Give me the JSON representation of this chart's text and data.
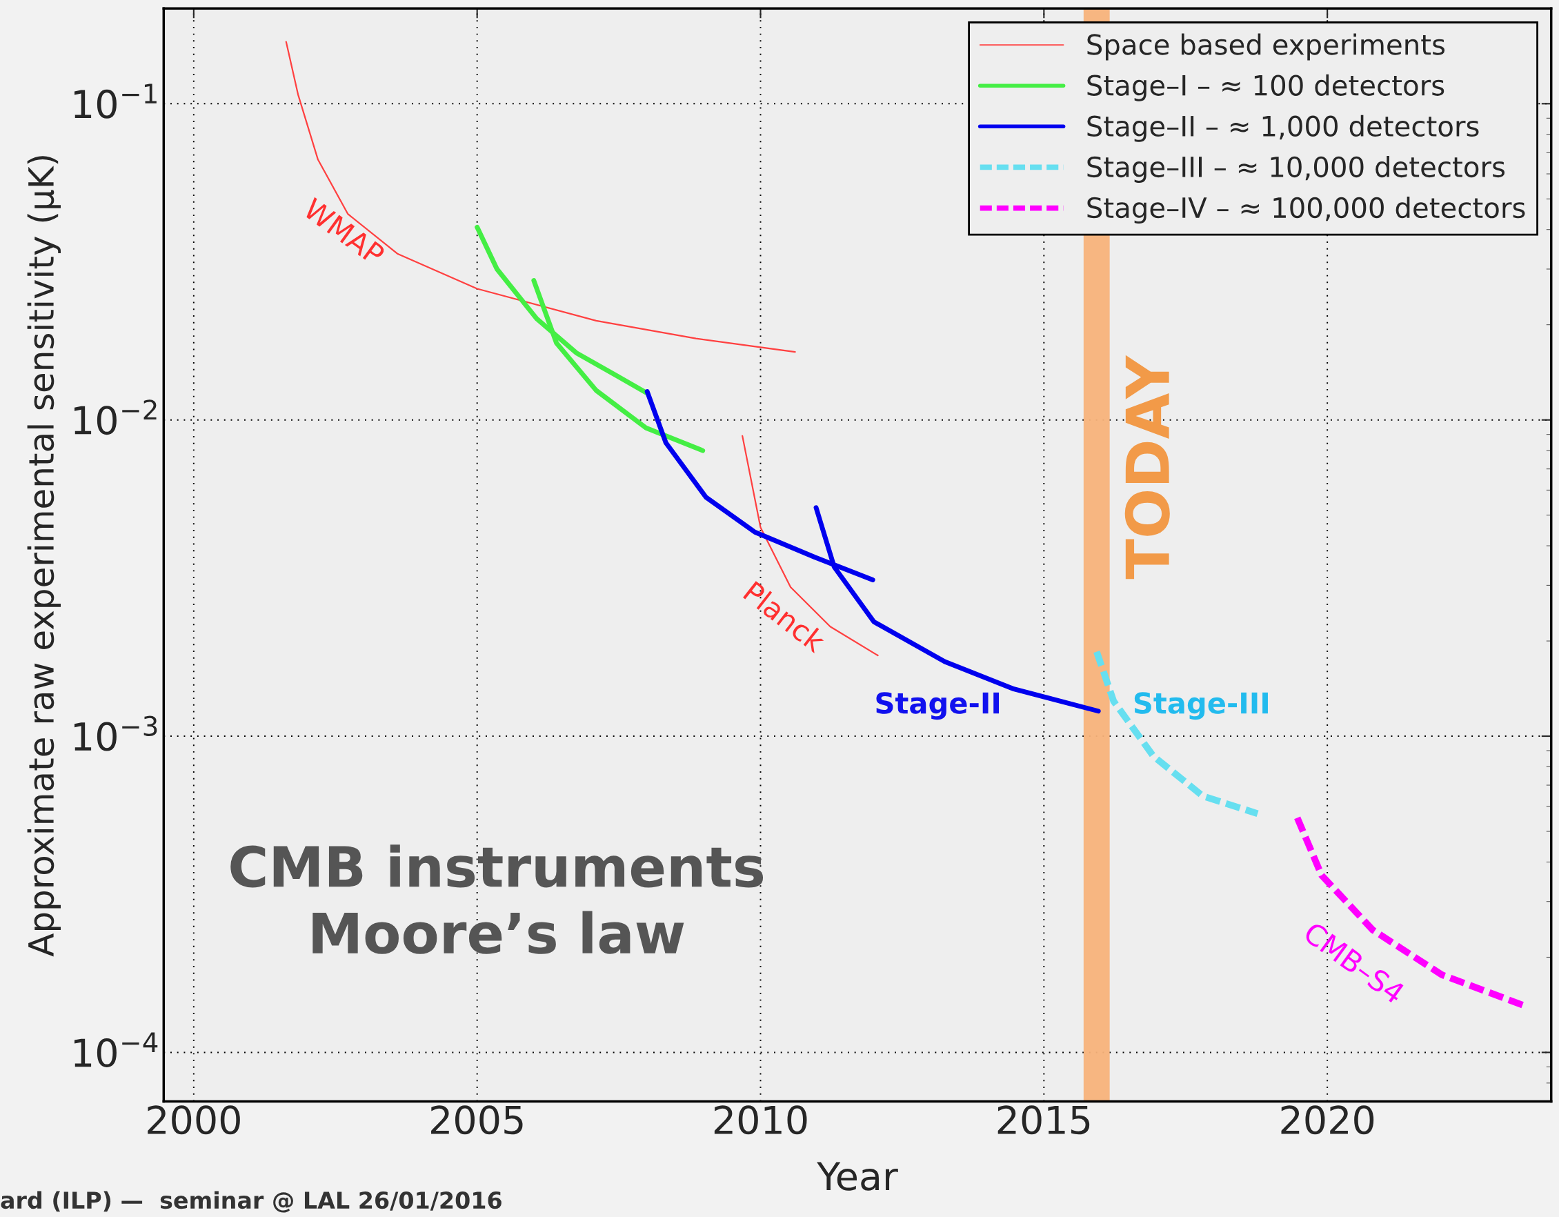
{
  "chart_data": {
    "type": "line",
    "xlabel": "Year",
    "ylabel": "Approximate raw experimental sensitivity (µK)",
    "xlim": [
      1999.47,
      2023.95
    ],
    "ylim": [
      7e-05,
      0.2
    ],
    "log": "y",
    "xticks": [
      2000,
      2005,
      2010,
      2015,
      2020
    ],
    "yticks": [
      {
        "value": 0.0001,
        "label": "10$^{−4}$"
      },
      {
        "value": 0.001,
        "label": "10$^{−3}$"
      },
      {
        "value": 0.01,
        "label": "10$^{−2}$"
      },
      {
        "value": 0.1,
        "label": "10$^{−1}$"
      }
    ],
    "grid": true,
    "legend": "top right",
    "series": [
      {
        "name": "Space based experiments",
        "color": "#ff4040",
        "line_style": "solid",
        "x": [
          2001.63,
          2001.84,
          2002.19,
          2002.72,
          2003.6,
          2005.0,
          2007.1,
          2008.86,
          2010.61
        ],
        "values": [
          0.157,
          0.107,
          0.0667,
          0.0448,
          0.0335,
          0.026,
          0.0206,
          0.0181,
          0.0164
        ]
      },
      {
        "color": "#ff4040",
        "line_style": "solid",
        "x": [
          2009.68,
          2010.0,
          2010.53,
          2011.23,
          2012.07
        ],
        "values": [
          0.0089,
          0.00457,
          0.00296,
          0.00222,
          0.0018
        ]
      },
      {
        "name": "Stage–I – ≈ 100 detectors",
        "color": "#44ee44",
        "line_style": "solid",
        "x": [
          2005.0,
          2005.35,
          2006.05,
          2006.75,
          2007.46,
          2007.98
        ],
        "values": [
          0.0407,
          0.03,
          0.0209,
          0.0163,
          0.0138,
          0.0122
        ]
      },
      {
        "color": "#44ee44",
        "line_style": "solid",
        "x": [
          2006.0,
          2006.4,
          2007.1,
          2007.98,
          2008.98
        ],
        "values": [
          0.0276,
          0.0175,
          0.0124,
          0.00944,
          0.008
        ]
      },
      {
        "name": "Stage–II – ≈ 1,000 detectors",
        "color": "#0000ee",
        "line_style": "solid",
        "x": [
          2008.0,
          2008.33,
          2009.04,
          2009.9,
          2010.96,
          2011.98
        ],
        "values": [
          0.0123,
          0.00847,
          0.00569,
          0.00442,
          0.00368,
          0.00312
        ]
      },
      {
        "color": "#0000ee",
        "line_style": "solid",
        "x": [
          2010.98,
          2011.3,
          2012.0,
          2013.25,
          2014.47,
          2015.96
        ],
        "values": [
          0.00528,
          0.00343,
          0.0023,
          0.00172,
          0.00141,
          0.0012
        ]
      },
      {
        "name": "Stage–III – ≈ 10,000 detectors",
        "color": "#66dff0",
        "line_style": "dashed",
        "x": [
          2015.93,
          2016.23,
          2016.93,
          2017.8,
          2018.77
        ],
        "values": [
          0.00185,
          0.00129,
          0.000865,
          0.000647,
          0.000569
        ]
      },
      {
        "name": "Stage–IV – ≈ 100,000 detectors",
        "color": "#ff00ff",
        "line_style": "dashed",
        "x": [
          2019.47,
          2019.9,
          2020.8,
          2022.02,
          2023.5
        ],
        "values": [
          0.000552,
          0.000363,
          0.000244,
          0.000176,
          0.00014
        ]
      }
    ],
    "bands": [
      {
        "axis": "x",
        "from": 2015.7,
        "to": 2016.16,
        "label": "TODAY",
        "color": "#f7b27a"
      }
    ],
    "annotations": [
      "WMAP",
      "Planck",
      "CMB–S4",
      "Stage-II",
      "Stage-III",
      "CMB instruments\nMoore’s law",
      "ard (ILP) —  seminar @ LAL 26/01/2016"
    ]
  }
}
